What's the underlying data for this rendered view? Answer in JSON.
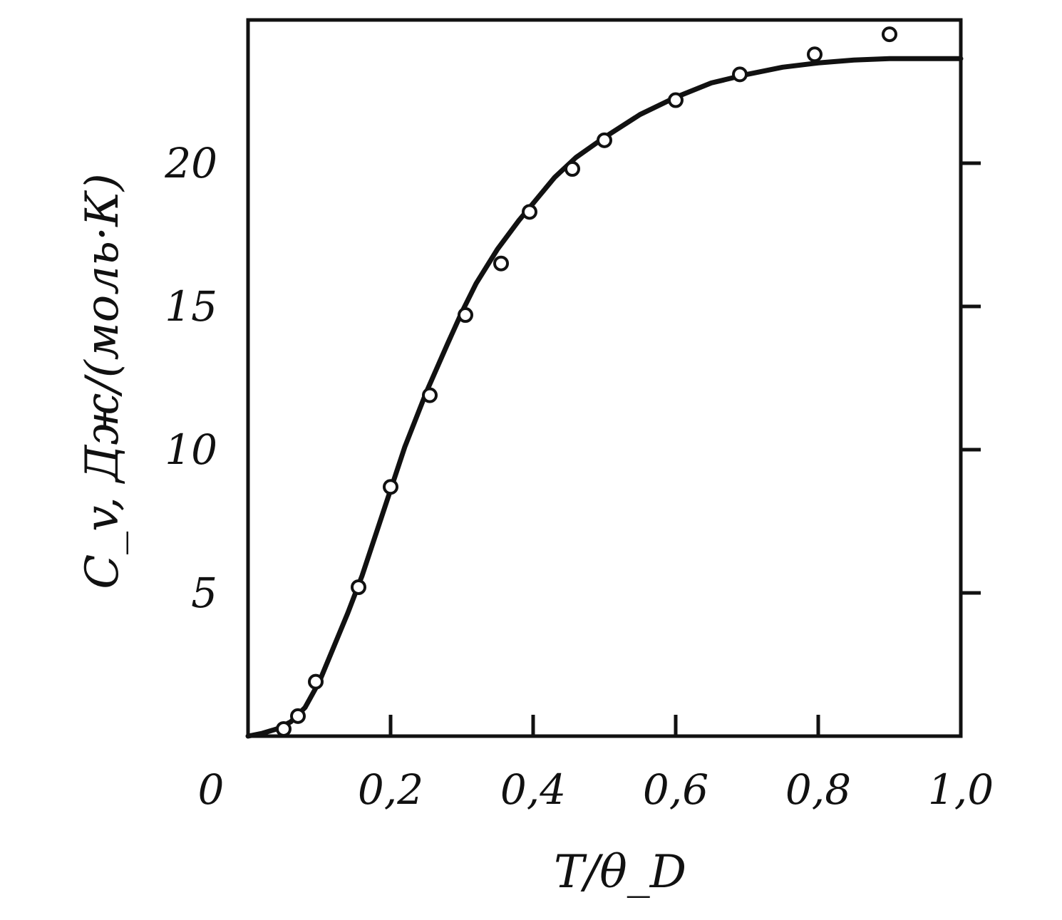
{
  "chart_data": {
    "type": "line",
    "xlabel": "T/θ_D",
    "ylabel": "C_v, Дж/(моль·К)",
    "xlim": [
      0,
      1.0
    ],
    "ylim": [
      0,
      25
    ],
    "x_ticks": [
      0.2,
      0.4,
      0.6,
      0.8,
      1.0
    ],
    "x_tick_labels": [
      "0,2",
      "0,4",
      "0,6",
      "0,8",
      "1,0"
    ],
    "x_origin_label": "0",
    "y_ticks": [
      5,
      10,
      15,
      20
    ],
    "y_tick_labels": [
      "5",
      "10",
      "15",
      "20"
    ],
    "grid": false,
    "series": [
      {
        "kind": "line",
        "x": [
          0.0,
          0.02,
          0.04,
          0.06,
          0.08,
          0.1,
          0.12,
          0.14,
          0.16,
          0.18,
          0.2,
          0.22,
          0.25,
          0.28,
          0.3,
          0.32,
          0.35,
          0.38,
          0.4,
          0.43,
          0.46,
          0.5,
          0.55,
          0.6,
          0.65,
          0.7,
          0.75,
          0.8,
          0.85,
          0.9,
          0.95,
          1.0
        ],
        "y": [
          0.0,
          0.1,
          0.25,
          0.5,
          1.0,
          1.9,
          3.1,
          4.3,
          5.6,
          7.1,
          8.6,
          10.1,
          12.0,
          13.7,
          14.8,
          15.8,
          17.0,
          18.0,
          18.6,
          19.5,
          20.2,
          20.9,
          21.7,
          22.3,
          22.8,
          23.1,
          23.35,
          23.5,
          23.6,
          23.65,
          23.65,
          23.65
        ]
      },
      {
        "kind": "points",
        "x": [
          0.05,
          0.07,
          0.095,
          0.155,
          0.2,
          0.255,
          0.305,
          0.355,
          0.395,
          0.455,
          0.5,
          0.6,
          0.69,
          0.795,
          0.9
        ],
        "y": [
          0.25,
          0.7,
          1.9,
          5.2,
          8.7,
          11.9,
          14.7,
          16.5,
          18.3,
          19.8,
          20.8,
          22.2,
          23.1,
          23.8,
          24.5
        ]
      }
    ],
    "colors": {
      "ink": "#111111",
      "background": "#ffffff"
    }
  }
}
